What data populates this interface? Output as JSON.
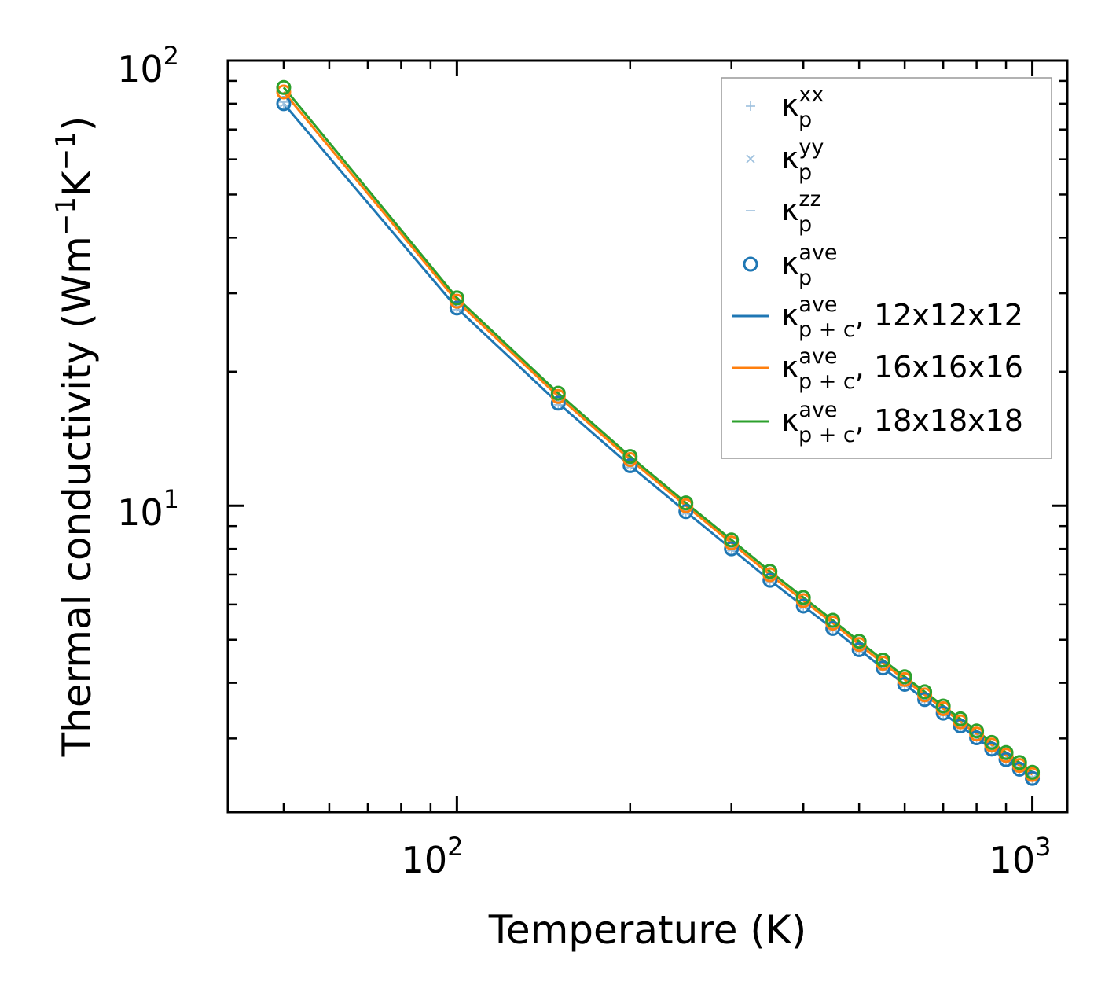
{
  "chart_data": {
    "type": "line",
    "xscale": "log",
    "yscale": "log",
    "xlim": [
      40,
      1150
    ],
    "ylim": [
      2.05,
      100
    ],
    "xlabel": "Temperature (K)",
    "ylabel": {
      "base": "Thermal conductivity (Wm",
      "exp1": "−1",
      "mid": "K",
      "exp2": "−1",
      "end": ")"
    },
    "xticks": [
      {
        "base": "10",
        "exp": "2",
        "value": 100
      },
      {
        "base": "10",
        "exp": "3",
        "value": 1000
      }
    ],
    "yticks": [
      {
        "base": "10",
        "exp": "1",
        "value": 10
      },
      {
        "base": "10",
        "exp": "2",
        "value": 100
      }
    ],
    "x": [
      50,
      100,
      150,
      200,
      250,
      300,
      350,
      400,
      450,
      500,
      550,
      600,
      650,
      700,
      750,
      800,
      850,
      900,
      950,
      1000
    ],
    "series": [
      {
        "name": "κp+c ave, 12x12x12",
        "color": "#1f77b4",
        "values": [
          80,
          27.8,
          17.0,
          12.3,
          9.7,
          8.0,
          6.8,
          5.95,
          5.3,
          4.75,
          4.32,
          3.97,
          3.67,
          3.42,
          3.2,
          3.01,
          2.84,
          2.69,
          2.56,
          2.44
        ]
      },
      {
        "name": "κp+c ave, 16x16x16",
        "color": "#ff7f0e",
        "values": [
          85,
          28.8,
          17.6,
          12.7,
          10.0,
          8.25,
          7.0,
          6.12,
          5.45,
          4.88,
          4.43,
          4.07,
          3.76,
          3.5,
          3.27,
          3.07,
          2.9,
          2.75,
          2.61,
          2.49
        ]
      },
      {
        "name": "κp+c ave, 18x18x18",
        "color": "#2ca02c",
        "values": [
          87,
          29.3,
          17.9,
          12.9,
          10.15,
          8.38,
          7.12,
          6.22,
          5.53,
          4.96,
          4.5,
          4.13,
          3.82,
          3.55,
          3.32,
          3.12,
          2.94,
          2.79,
          2.65,
          2.52
        ]
      }
    ],
    "markers": [
      {
        "name": "κp xx",
        "symbol": "+",
        "color": "#9dc0de",
        "offset": 0.992
      },
      {
        "name": "κp yy",
        "symbol": "x",
        "color": "#9dc0de",
        "offset": 1.0
      },
      {
        "name": "κp zz",
        "symbol": "-",
        "color": "#9dc0de",
        "offset": 1.008
      },
      {
        "name": "κp ave",
        "symbol": "o",
        "color": "#1f77b4",
        "offset": 1.0
      }
    ],
    "marker_series_note": "open circle markers are drawn on each line series",
    "legend": {
      "position": "top-right",
      "items": [
        {
          "label_base": "κ",
          "sub": "p",
          "sup": "xx",
          "rest": ""
        },
        {
          "label_base": "κ",
          "sub": "p",
          "sup": "yy",
          "rest": ""
        },
        {
          "label_base": "κ",
          "sub": "p",
          "sup": "zz",
          "rest": ""
        },
        {
          "label_base": "κ",
          "sub": "p",
          "sup": "ave",
          "rest": ""
        },
        {
          "label_base": "κ",
          "sub": "p + c",
          "sup": "ave",
          "rest": ", 12x12x12"
        },
        {
          "label_base": "κ",
          "sub": "p + c",
          "sup": "ave",
          "rest": ", 16x16x16"
        },
        {
          "label_base": "κ",
          "sub": "p + c",
          "sup": "ave",
          "rest": ", 18x18x18"
        }
      ]
    }
  }
}
